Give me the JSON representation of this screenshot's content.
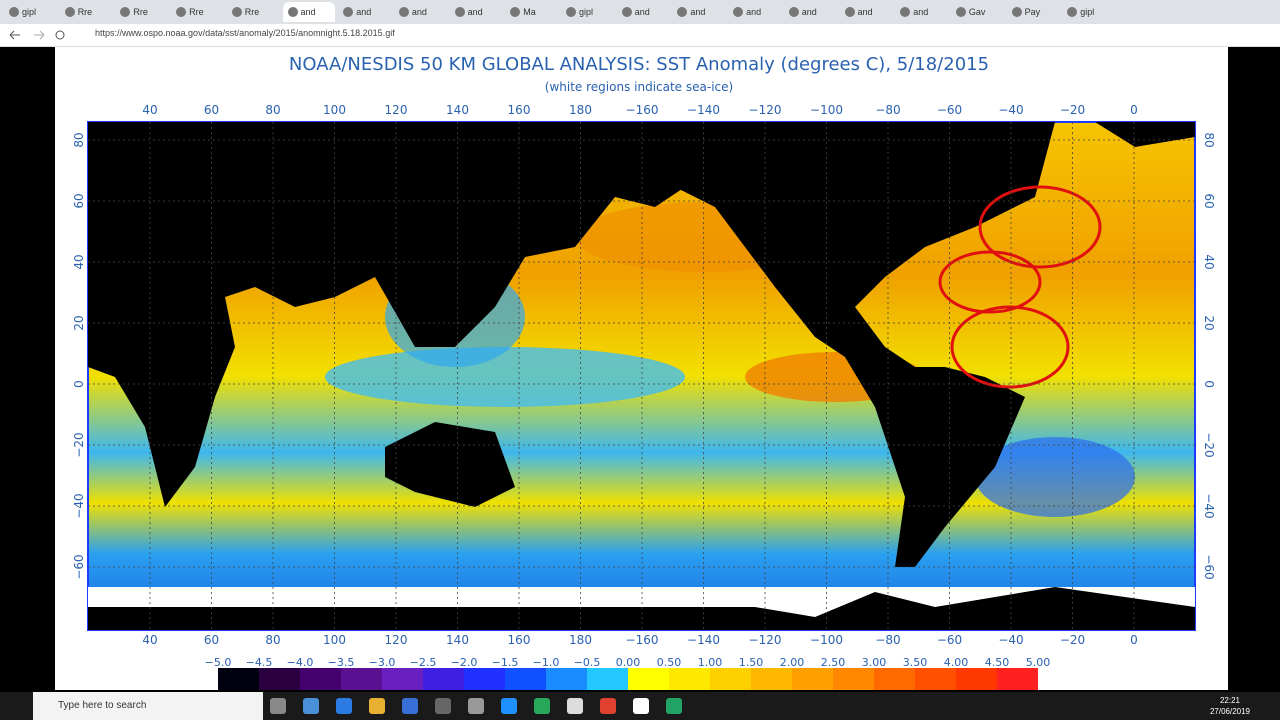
{
  "browser": {
    "tabs": [
      "gipl",
      "Rre",
      "Rre",
      "Rre",
      "Rre",
      "and",
      "and",
      "and",
      "and",
      "Ma",
      "gipl",
      "and",
      "and",
      "and",
      "and",
      "and",
      "and",
      "Gav",
      "Pay",
      "gipl"
    ],
    "active_tab": 5,
    "url": "https://www.ospo.noaa.gov/data/sst/anomaly/2015/anomnight.5.18.2015.gif"
  },
  "map": {
    "title": "NOAA/NESDIS 50 KM GLOBAL ANALYSIS: SST Anomaly (degrees C), 5/18/2015",
    "subtitle": "(white regions indicate sea-ice)",
    "lon_labels": [
      "40",
      "60",
      "80",
      "100",
      "120",
      "140",
      "160",
      "180",
      "−160",
      "−140",
      "−120",
      "−100",
      "−80",
      "−60",
      "−40",
      "−20",
      "0"
    ],
    "lat_labels": [
      "80",
      "60",
      "40",
      "20",
      "0",
      "−20",
      "−40",
      "−60"
    ],
    "colorbar_labels": [
      "−5.0",
      "−4.5",
      "−4.0",
      "−3.5",
      "−3.0",
      "−2.5",
      "−2.0",
      "−1.5",
      "−1.0",
      "−0.5",
      "0.00",
      "0.50",
      "1.00",
      "1.50",
      "2.00",
      "2.50",
      "3.00",
      "3.50",
      "4.00",
      "4.50",
      "5.00"
    ]
  },
  "taskbar": {
    "search": "Type here to search",
    "time": "22:21",
    "date": "27/06/2019"
  }
}
